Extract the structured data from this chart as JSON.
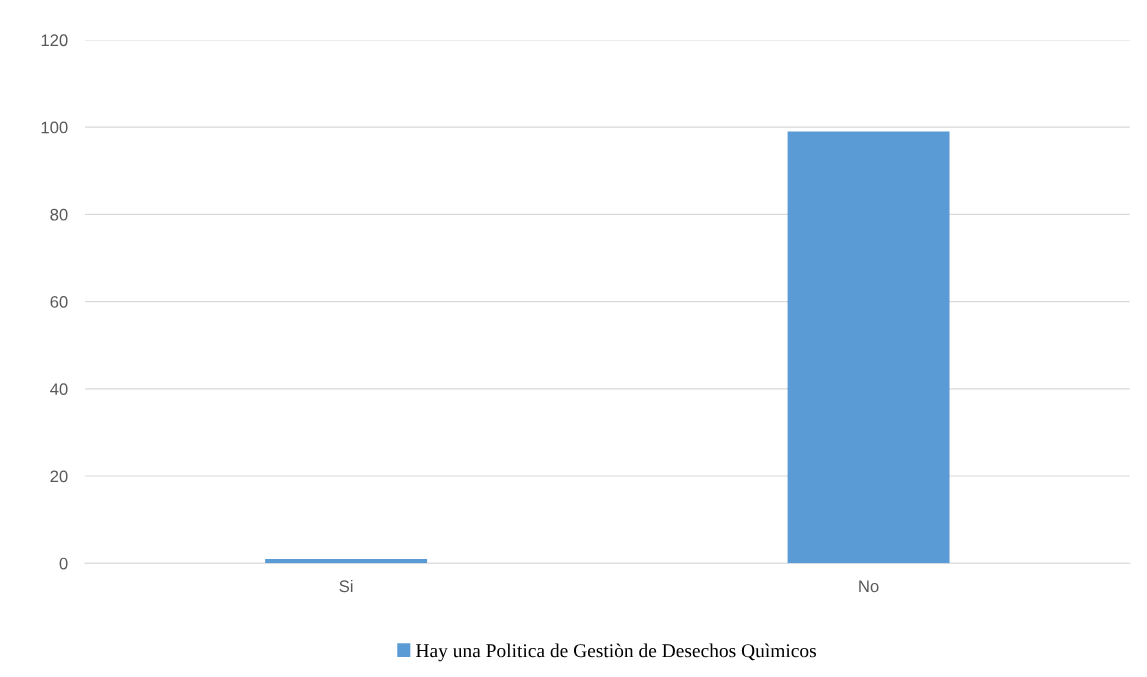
{
  "chart_data": {
    "type": "bar",
    "categories": [
      "Si",
      "No"
    ],
    "series": [
      {
        "name": "Hay una Politica de Gestiòn de Desechos Quìmicos",
        "color": "#5b9bd5",
        "values": [
          1,
          99
        ]
      }
    ],
    "ylim": [
      0,
      120
    ],
    "yticks": [
      0,
      20,
      40,
      60,
      80,
      100,
      120
    ],
    "grid": "y",
    "legend": "bottom"
  }
}
